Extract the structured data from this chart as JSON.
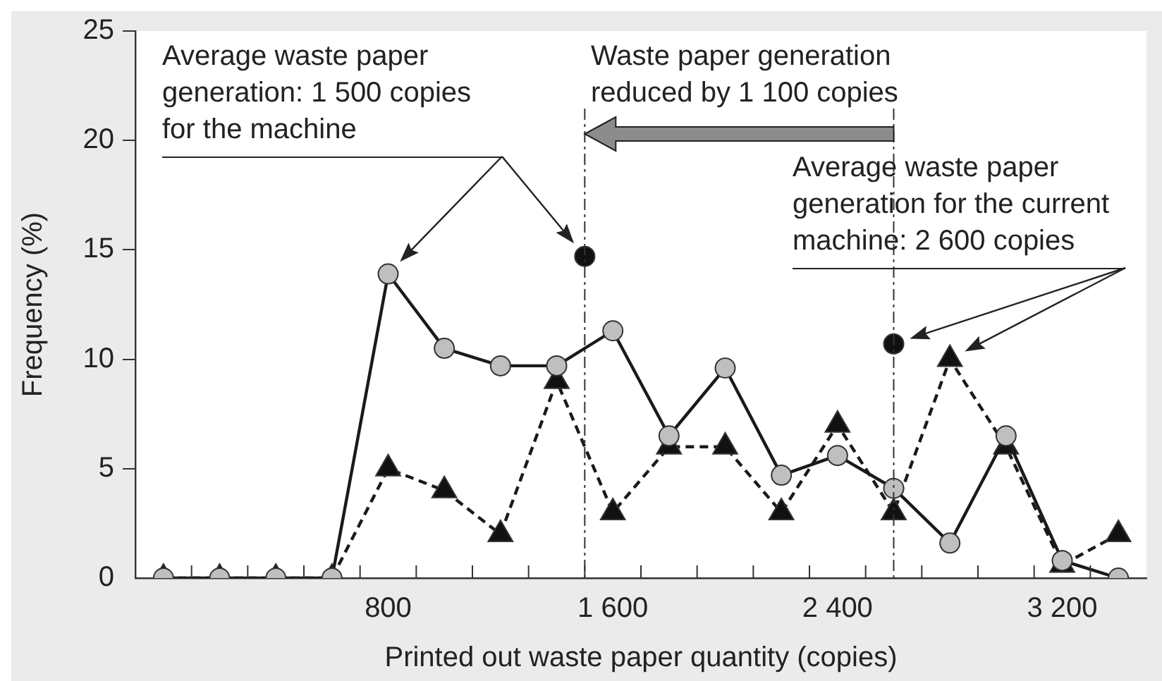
{
  "chart_data": {
    "type": "line",
    "xlabel": "Printed out waste paper quantity (copies)",
    "ylabel": "Frequency (%)",
    "x": [
      0,
      200,
      400,
      600,
      800,
      1000,
      1200,
      1400,
      1600,
      1800,
      2000,
      2200,
      2400,
      2600,
      2800,
      3000,
      3200,
      3400
    ],
    "series": [
      {
        "color": "#bfbfbf",
        "marker": "circle",
        "line_style": "solid",
        "values": [
          0,
          0,
          0,
          0,
          13.9,
          10.5,
          9.7,
          9.7,
          11.3,
          6.5,
          9.6,
          4.7,
          5.6,
          4.1,
          1.6,
          6.5,
          0.8,
          0
        ]
      },
      {
        "color": "#111111",
        "marker": "triangle",
        "line_style": "dashed",
        "values": [
          0,
          0,
          0,
          0,
          5,
          4,
          2,
          9,
          3,
          6,
          6,
          3,
          7,
          3,
          10,
          6,
          0.6,
          2
        ]
      },
      {
        "type": "scatter",
        "color": "#111111",
        "marker": "circle",
        "x": [
          1500,
          2600
        ],
        "values": [
          14.7,
          10.7
        ]
      }
    ],
    "xlim": [
      -100,
      3500
    ],
    "xticks": [
      {
        "value": 100,
        "label": null
      },
      {
        "value": 300,
        "label": null
      },
      {
        "value": 500,
        "label": null
      },
      {
        "value": 700,
        "label": null
      },
      800,
      {
        "value": 900,
        "label": null
      },
      {
        "value": 1100,
        "label": null
      },
      {
        "value": 1300,
        "label": null
      },
      {
        "value": 1500,
        "label": null
      },
      {
        "value": 1600,
        "label": "1 600"
      },
      {
        "value": 1700,
        "label": null
      },
      {
        "value": 1900,
        "label": null
      },
      {
        "value": 2100,
        "label": null
      },
      {
        "value": 2300,
        "label": null
      },
      {
        "value": 2400,
        "label": "2 400"
      },
      {
        "value": 2500,
        "label": null
      },
      {
        "value": 2700,
        "label": null
      },
      {
        "value": 2900,
        "label": null
      },
      {
        "value": 3100,
        "label": null
      },
      {
        "value": 3200,
        "label": "3 200"
      },
      {
        "value": 3300,
        "label": null
      }
    ],
    "ylim": [
      0,
      25
    ],
    "yticks": [
      0,
      5,
      10,
      15,
      20,
      25
    ],
    "ref_lines": [
      {
        "axis": "x",
        "value": 1500,
        "line_style": "dashdot"
      },
      {
        "axis": "x",
        "value": 2600,
        "line_style": "dashdot"
      }
    ],
    "annotations": [
      "Average waste paper generation: 1 500 copies for the machine",
      "Waste paper generation reduced by 1 100 copies",
      "Average waste paper generation for the current machine: 2 600 copies"
    ],
    "grid": false,
    "legend": false
  }
}
